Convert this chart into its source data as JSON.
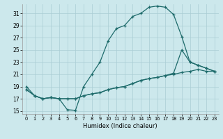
{
  "xlabel": "Humidex (Indice chaleur)",
  "bg_color": "#cce8ec",
  "grid_color": "#aacdd4",
  "line_color": "#1e6b6b",
  "xlim": [
    -0.5,
    23.5
  ],
  "ylim": [
    14.5,
    32.5
  ],
  "xticks": [
    0,
    1,
    2,
    3,
    4,
    5,
    6,
    7,
    8,
    9,
    10,
    11,
    12,
    13,
    14,
    15,
    16,
    17,
    18,
    19,
    20,
    21,
    22,
    23
  ],
  "yticks": [
    15,
    17,
    19,
    21,
    23,
    25,
    27,
    29,
    31
  ],
  "line1_x": [
    0,
    1,
    2,
    3,
    4,
    5,
    6,
    7,
    8,
    9,
    10,
    11,
    12,
    13,
    14,
    15,
    16,
    17,
    18,
    19,
    20,
    21,
    22,
    23
  ],
  "line1_y": [
    19.0,
    17.5,
    17.0,
    17.2,
    17.0,
    15.2,
    15.1,
    19.0,
    21.0,
    23.0,
    26.5,
    28.5,
    29.0,
    30.5,
    31.0,
    32.0,
    32.2,
    32.0,
    30.8,
    27.2,
    23.0,
    22.5,
    22.0,
    21.5
  ],
  "line2_x": [
    0,
    1,
    2,
    3,
    4,
    5,
    6,
    7,
    8,
    9,
    10,
    11,
    12,
    13,
    14,
    15,
    16,
    17,
    18,
    19,
    20,
    21,
    22,
    23
  ],
  "line2_y": [
    18.5,
    17.5,
    17.0,
    17.2,
    17.0,
    17.0,
    17.0,
    17.5,
    17.8,
    18.0,
    18.5,
    18.8,
    19.0,
    19.5,
    20.0,
    20.3,
    20.5,
    20.8,
    21.0,
    21.3,
    21.5,
    21.8,
    21.5,
    21.5
  ],
  "line3_x": [
    0,
    1,
    2,
    3,
    4,
    5,
    6,
    7,
    8,
    9,
    10,
    11,
    12,
    13,
    14,
    15,
    16,
    17,
    18,
    19,
    20,
    21,
    22,
    23
  ],
  "line3_y": [
    18.5,
    17.5,
    17.0,
    17.2,
    17.0,
    17.0,
    17.0,
    17.5,
    17.8,
    18.0,
    18.5,
    18.8,
    19.0,
    19.5,
    20.0,
    20.3,
    20.5,
    20.8,
    21.2,
    25.0,
    23.0,
    22.5,
    22.0,
    21.5
  ]
}
